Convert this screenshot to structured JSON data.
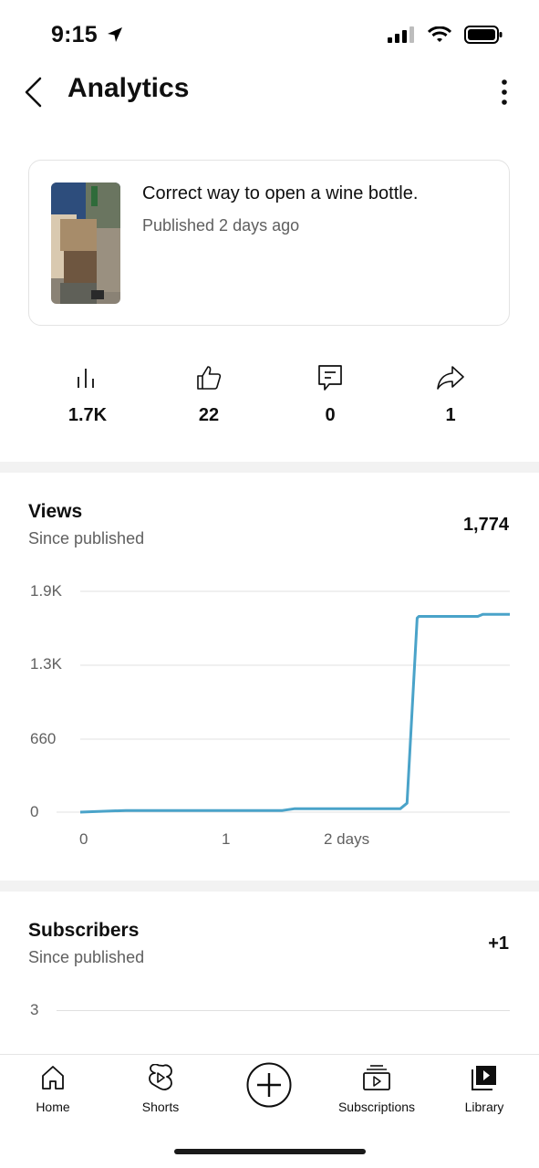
{
  "status_bar": {
    "time": "9:15"
  },
  "header": {
    "title": "Analytics"
  },
  "video": {
    "title": "Correct way to open a wine bottle.",
    "published": "Published 2 days ago"
  },
  "stats": [
    {
      "icon": "views-bars-icon",
      "value": "1.7K"
    },
    {
      "icon": "thumbs-up-icon",
      "value": "22"
    },
    {
      "icon": "comment-icon",
      "value": "0"
    },
    {
      "icon": "share-icon",
      "value": "1"
    }
  ],
  "views_section": {
    "title": "Views",
    "subtitle": "Since published",
    "total": "1,774"
  },
  "subscribers_section": {
    "title": "Subscribers",
    "subtitle": "Since published",
    "total": "+1",
    "y_tick": "3"
  },
  "chart_data": {
    "type": "line",
    "title": "",
    "xlabel": "",
    "ylabel": "",
    "y_tick_labels": [
      "1.9K",
      "1.3K",
      "660",
      "0"
    ],
    "x_tick_labels": [
      "0",
      "1",
      "2 days"
    ],
    "ylim": [
      0,
      1980
    ],
    "xlim": [
      0,
      2.55
    ],
    "grid": true,
    "series": [
      {
        "color": "#4aa3c9",
        "x": [
          0,
          0.27,
          1.2,
          1.27,
          1.9,
          1.94,
          2.0,
          2.01,
          2.05,
          2.36,
          2.39,
          2.55
        ],
        "y": [
          0,
          15,
          15,
          30,
          30,
          80,
          1740,
          1755,
          1755,
          1755,
          1774,
          1774
        ]
      }
    ]
  },
  "bottom_nav": {
    "items": [
      {
        "label": "Home",
        "icon": "home-icon"
      },
      {
        "label": "Shorts",
        "icon": "shorts-icon"
      },
      {
        "label": "",
        "icon": "create-plus-icon"
      },
      {
        "label": "Subscriptions",
        "icon": "subscriptions-icon"
      },
      {
        "label": "Library",
        "icon": "library-icon"
      }
    ]
  }
}
